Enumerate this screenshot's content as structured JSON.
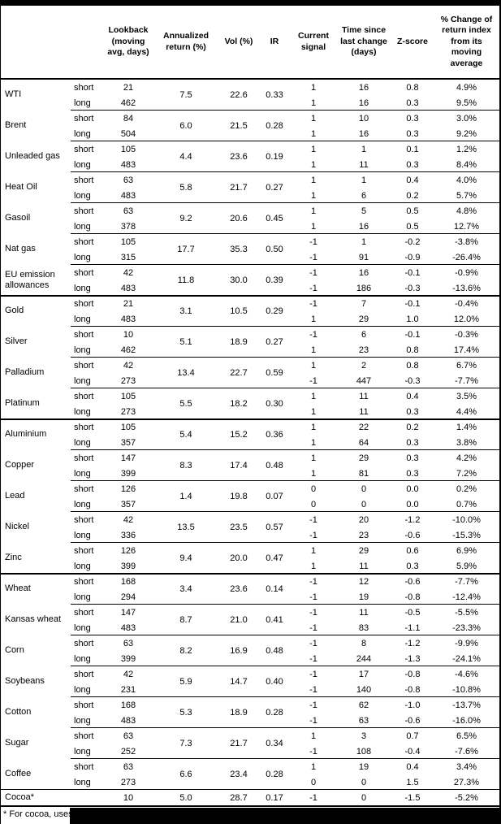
{
  "colors": {
    "text": "#000000",
    "background": "#ffffff",
    "border": "#000000",
    "redaction": "#000000"
  },
  "table": {
    "headers": {
      "name": "",
      "position": "",
      "lookback": "Lookback (moving avg, days)",
      "annualized": "Annualized return (%)",
      "vol": "Vol (%)",
      "ir": "IR",
      "signal": "Current signal",
      "time": "Time since last change (days)",
      "zscore": "Z-score",
      "pct_change": "% Change of return index from its moving average"
    },
    "rows": [
      {
        "name": "WTI",
        "rule": "none",
        "annualized": "7.5",
        "vol": "22.6",
        "ir": "0.33",
        "legs": [
          {
            "pos": "short",
            "lookback": "21",
            "signal": "1",
            "time": "16",
            "z": "0.8",
            "pct": "4.9%"
          },
          {
            "pos": "long",
            "lookback": "462",
            "signal": "1",
            "time": "16",
            "z": "0.3",
            "pct": "9.5%"
          }
        ]
      },
      {
        "name": "Brent",
        "rule": "thin",
        "annualized": "6.0",
        "vol": "21.5",
        "ir": "0.28",
        "legs": [
          {
            "pos": "short",
            "lookback": "84",
            "signal": "1",
            "time": "10",
            "z": "0.3",
            "pct": "3.0%"
          },
          {
            "pos": "long",
            "lookback": "504",
            "signal": "1",
            "time": "16",
            "z": "0.3",
            "pct": "9.2%"
          }
        ]
      },
      {
        "name": "Unleaded gas",
        "rule": "thin",
        "annualized": "4.4",
        "vol": "23.6",
        "ir": "0.19",
        "legs": [
          {
            "pos": "short",
            "lookback": "105",
            "signal": "1",
            "time": "1",
            "z": "0.1",
            "pct": "1.2%"
          },
          {
            "pos": "long",
            "lookback": "483",
            "signal": "1",
            "time": "11",
            "z": "0.3",
            "pct": "8.4%"
          }
        ]
      },
      {
        "name": "Heat Oil",
        "rule": "thin",
        "annualized": "5.8",
        "vol": "21.7",
        "ir": "0.27",
        "legs": [
          {
            "pos": "short",
            "lookback": "63",
            "signal": "1",
            "time": "1",
            "z": "0.4",
            "pct": "4.0%"
          },
          {
            "pos": "long",
            "lookback": "483",
            "signal": "1",
            "time": "6",
            "z": "0.2",
            "pct": "5.7%"
          }
        ]
      },
      {
        "name": "Gasoil",
        "rule": "thin",
        "annualized": "9.2",
        "vol": "20.6",
        "ir": "0.45",
        "legs": [
          {
            "pos": "short",
            "lookback": "63",
            "signal": "1",
            "time": "5",
            "z": "0.5",
            "pct": "4.8%"
          },
          {
            "pos": "long",
            "lookback": "378",
            "signal": "1",
            "time": "16",
            "z": "0.5",
            "pct": "12.7%"
          }
        ]
      },
      {
        "name": "Nat gas",
        "rule": "thin",
        "annualized": "17.7",
        "vol": "35.3",
        "ir": "0.50",
        "legs": [
          {
            "pos": "short",
            "lookback": "105",
            "signal": "-1",
            "time": "1",
            "z": "-0.2",
            "pct": "-3.8%"
          },
          {
            "pos": "long",
            "lookback": "315",
            "signal": "-1",
            "time": "91",
            "z": "-0.9",
            "pct": "-26.4%"
          }
        ]
      },
      {
        "name": "EU emission allowances",
        "rule": "thin",
        "annualized": "11.8",
        "vol": "30.0",
        "ir": "0.39",
        "legs": [
          {
            "pos": "short",
            "lookback": "42",
            "signal": "-1",
            "time": "16",
            "z": "-0.1",
            "pct": "-0.9%"
          },
          {
            "pos": "long",
            "lookback": "483",
            "signal": "-1",
            "time": "186",
            "z": "-0.3",
            "pct": "-13.6%"
          }
        ]
      },
      {
        "name": "Gold",
        "rule": "thick",
        "annualized": "3.1",
        "vol": "10.5",
        "ir": "0.29",
        "legs": [
          {
            "pos": "short",
            "lookback": "21",
            "signal": "-1",
            "time": "7",
            "z": "-0.1",
            "pct": "-0.4%"
          },
          {
            "pos": "long",
            "lookback": "483",
            "signal": "1",
            "time": "29",
            "z": "1.0",
            "pct": "12.0%"
          }
        ]
      },
      {
        "name": "Silver",
        "rule": "thin",
        "annualized": "5.1",
        "vol": "18.9",
        "ir": "0.27",
        "legs": [
          {
            "pos": "short",
            "lookback": "10",
            "signal": "-1",
            "time": "6",
            "z": "-0.1",
            "pct": "-0.3%"
          },
          {
            "pos": "long",
            "lookback": "462",
            "signal": "1",
            "time": "23",
            "z": "0.8",
            "pct": "17.4%"
          }
        ]
      },
      {
        "name": "Palladium",
        "rule": "thin",
        "annualized": "13.4",
        "vol": "22.7",
        "ir": "0.59",
        "legs": [
          {
            "pos": "short",
            "lookback": "42",
            "signal": "1",
            "time": "2",
            "z": "0.8",
            "pct": "6.7%"
          },
          {
            "pos": "long",
            "lookback": "273",
            "signal": "-1",
            "time": "447",
            "z": "-0.3",
            "pct": "-7.7%"
          }
        ]
      },
      {
        "name": "Platinum",
        "rule": "thin",
        "annualized": "5.5",
        "vol": "18.2",
        "ir": "0.30",
        "legs": [
          {
            "pos": "short",
            "lookback": "105",
            "signal": "1",
            "time": "11",
            "z": "0.4",
            "pct": "3.5%"
          },
          {
            "pos": "long",
            "lookback": "273",
            "signal": "1",
            "time": "11",
            "z": "0.3",
            "pct": "4.4%"
          }
        ]
      },
      {
        "name": "Aluminium",
        "rule": "thick",
        "annualized": "5.4",
        "vol": "15.2",
        "ir": "0.36",
        "legs": [
          {
            "pos": "short",
            "lookback": "105",
            "signal": "1",
            "time": "22",
            "z": "0.2",
            "pct": "1.4%"
          },
          {
            "pos": "long",
            "lookback": "357",
            "signal": "1",
            "time": "64",
            "z": "0.3",
            "pct": "3.8%"
          }
        ]
      },
      {
        "name": "Copper",
        "rule": "thin",
        "annualized": "8.3",
        "vol": "17.4",
        "ir": "0.48",
        "legs": [
          {
            "pos": "short",
            "lookback": "147",
            "signal": "1",
            "time": "29",
            "z": "0.3",
            "pct": "4.2%"
          },
          {
            "pos": "long",
            "lookback": "399",
            "signal": "1",
            "time": "81",
            "z": "0.3",
            "pct": "7.2%"
          }
        ]
      },
      {
        "name": "Lead",
        "rule": "thin",
        "annualized": "1.4",
        "vol": "19.8",
        "ir": "0.07",
        "legs": [
          {
            "pos": "short",
            "lookback": "126",
            "signal": "0",
            "time": "0",
            "z": "0.0",
            "pct": "0.2%"
          },
          {
            "pos": "long",
            "lookback": "357",
            "signal": "0",
            "time": "0",
            "z": "0.0",
            "pct": "0.7%"
          }
        ]
      },
      {
        "name": "Nickel",
        "rule": "thin",
        "annualized": "13.5",
        "vol": "23.5",
        "ir": "0.57",
        "legs": [
          {
            "pos": "short",
            "lookback": "42",
            "signal": "-1",
            "time": "20",
            "z": "-1.2",
            "pct": "-10.0%"
          },
          {
            "pos": "long",
            "lookback": "336",
            "signal": "-1",
            "time": "23",
            "z": "-0.6",
            "pct": "-15.3%"
          }
        ]
      },
      {
        "name": "Zinc",
        "rule": "thin",
        "annualized": "9.4",
        "vol": "20.0",
        "ir": "0.47",
        "legs": [
          {
            "pos": "short",
            "lookback": "126",
            "signal": "1",
            "time": "29",
            "z": "0.6",
            "pct": "6.9%"
          },
          {
            "pos": "long",
            "lookback": "399",
            "signal": "1",
            "time": "11",
            "z": "0.3",
            "pct": "5.9%"
          }
        ]
      },
      {
        "name": "Wheat",
        "rule": "thick",
        "annualized": "3.4",
        "vol": "23.6",
        "ir": "0.14",
        "legs": [
          {
            "pos": "short",
            "lookback": "168",
            "signal": "-1",
            "time": "12",
            "z": "-0.6",
            "pct": "-7.7%"
          },
          {
            "pos": "long",
            "lookback": "294",
            "signal": "-1",
            "time": "19",
            "z": "-0.8",
            "pct": "-12.4%"
          }
        ]
      },
      {
        "name": "Kansas wheat",
        "rule": "thin",
        "annualized": "8.7",
        "vol": "21.0",
        "ir": "0.41",
        "legs": [
          {
            "pos": "short",
            "lookback": "147",
            "signal": "-1",
            "time": "11",
            "z": "-0.5",
            "pct": "-5.5%"
          },
          {
            "pos": "long",
            "lookback": "483",
            "signal": "-1",
            "time": "83",
            "z": "-1.1",
            "pct": "-23.3%"
          }
        ]
      },
      {
        "name": "Corn",
        "rule": "thin",
        "annualized": "8.2",
        "vol": "16.9",
        "ir": "0.48",
        "legs": [
          {
            "pos": "short",
            "lookback": "63",
            "signal": "-1",
            "time": "8",
            "z": "-1.2",
            "pct": "-9.9%"
          },
          {
            "pos": "long",
            "lookback": "399",
            "signal": "-1",
            "time": "244",
            "z": "-1.3",
            "pct": "-24.1%"
          }
        ]
      },
      {
        "name": "Soybeans",
        "rule": "thin",
        "annualized": "5.9",
        "vol": "14.7",
        "ir": "0.40",
        "legs": [
          {
            "pos": "short",
            "lookback": "42",
            "signal": "-1",
            "time": "17",
            "z": "-0.8",
            "pct": "-4.6%"
          },
          {
            "pos": "long",
            "lookback": "231",
            "signal": "-1",
            "time": "140",
            "z": "-0.8",
            "pct": "-10.8%"
          }
        ]
      },
      {
        "name": "Cotton",
        "rule": "thin",
        "annualized": "5.3",
        "vol": "18.9",
        "ir": "0.28",
        "legs": [
          {
            "pos": "short",
            "lookback": "168",
            "signal": "-1",
            "time": "62",
            "z": "-1.0",
            "pct": "-13.7%"
          },
          {
            "pos": "long",
            "lookback": "483",
            "signal": "-1",
            "time": "63",
            "z": "-0.6",
            "pct": "-16.0%"
          }
        ]
      },
      {
        "name": "Sugar",
        "rule": "thin",
        "annualized": "7.3",
        "vol": "21.7",
        "ir": "0.34",
        "legs": [
          {
            "pos": "short",
            "lookback": "63",
            "signal": "1",
            "time": "3",
            "z": "0.7",
            "pct": "6.5%"
          },
          {
            "pos": "long",
            "lookback": "252",
            "signal": "-1",
            "time": "108",
            "z": "-0.4",
            "pct": "-7.6%"
          }
        ]
      },
      {
        "name": "Coffee",
        "rule": "thin",
        "annualized": "6.6",
        "vol": "23.4",
        "ir": "0.28",
        "legs": [
          {
            "pos": "short",
            "lookback": "63",
            "signal": "1",
            "time": "19",
            "z": "0.4",
            "pct": "3.4%"
          },
          {
            "pos": "long",
            "lookback": "273",
            "signal": "0",
            "time": "0",
            "z": "1.5",
            "pct": "27.3%"
          }
        ]
      },
      {
        "name": "Cocoa*",
        "rule": "full",
        "annualized": "5.0",
        "vol": "28.7",
        "ir": "0.17",
        "legs": [
          {
            "pos": "",
            "lookback": "10",
            "signal": "-1",
            "time": "0",
            "z": "-1.5",
            "pct": "-5.2%"
          }
        ]
      }
    ],
    "footnote_visible": "* For cocoa, uses o"
  }
}
